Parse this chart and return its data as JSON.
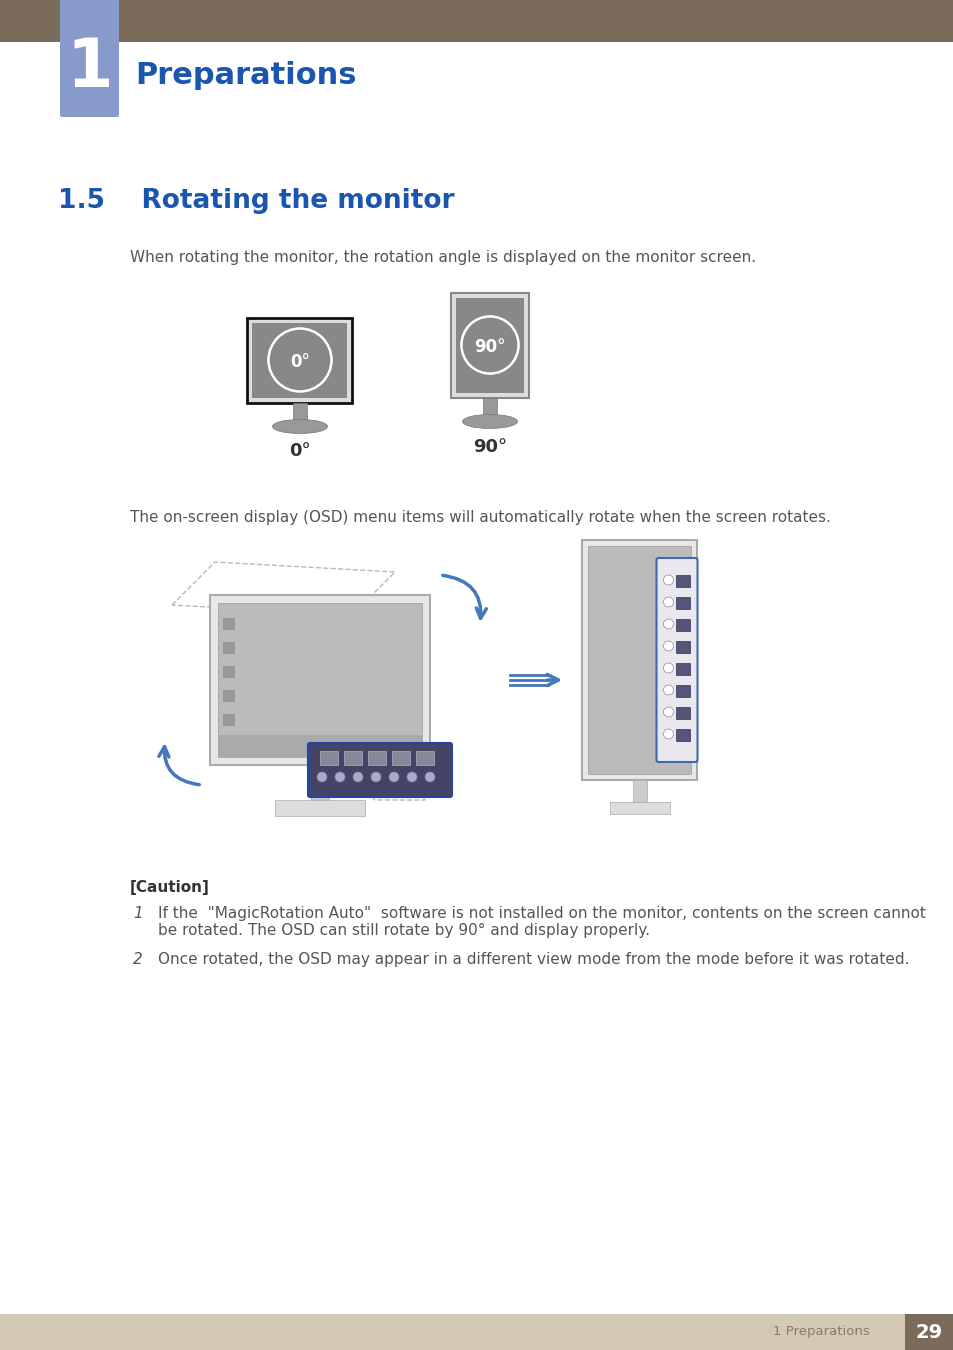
{
  "title_bar_color": "#7a6b5a",
  "chapter_box_color": "#8899cc",
  "chapter_number": "1",
  "chapter_title": "Preparations",
  "chapter_title_color": "#1a56b0",
  "chapter_title_fontsize": 22,
  "section_title": "1.5    Rotating the monitor",
  "section_title_color": "#1a56b0",
  "section_title_fontsize": 19,
  "body_text_color": "#555555",
  "body_fontsize": 11,
  "para1": "When rotating the monitor, the rotation angle is displayed on the monitor screen.",
  "para2": "The on-screen display (OSD) menu items will automatically rotate when the screen rotates.",
  "caution_header": "[Caution]",
  "caution_header_fontsize": 11,
  "caution1_num": "1",
  "caution1": "If the  \"MagicRotation Auto\"  software is not installed on the monitor, contents on the screen cannot\nbe rotated. The OSD can still rotate by 90° and display properly.",
  "caution2_num": "2",
  "caution2": "Once rotated, the OSD may appear in a different view mode from the mode before it was rotated.",
  "footer_bg_color": "#d4c9b5",
  "footer_text": "1 Preparations",
  "footer_page": "29",
  "footer_page_bg": "#7a6b5a",
  "footer_text_color": "#8a7a6a",
  "footer_page_color": "#ffffff",
  "bg_color": "#ffffff",
  "monitor0_label": "0°",
  "monitor90_label": "90°",
  "arrow_color": "#4477bb",
  "arrow_between_color": "#4477bb"
}
